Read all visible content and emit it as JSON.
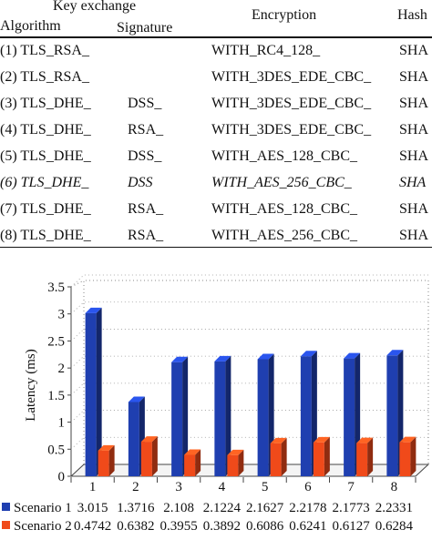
{
  "table": {
    "header": {
      "key_exchange": "Key exchange",
      "algorithm": "Algorithm",
      "signature": "Signature",
      "encryption": "Encryption",
      "hash": "Hash"
    },
    "rows": [
      {
        "alg": "(1) TLS_RSA_",
        "sig": "",
        "enc": "WITH_RC4_128_",
        "hash": "SHA",
        "italic": false
      },
      {
        "alg": "(2) TLS_RSA_",
        "sig": "",
        "enc": "WITH_3DES_EDE_CBC_",
        "hash": "SHA",
        "italic": false
      },
      {
        "alg": "(3) TLS_DHE_",
        "sig": "DSS_",
        "enc": "WITH_3DES_EDE_CBC_",
        "hash": "SHA",
        "italic": false
      },
      {
        "alg": "(4) TLS_DHE_",
        "sig": "RSA_",
        "enc": "WITH_3DES_EDE_CBC_",
        "hash": "SHA",
        "italic": false
      },
      {
        "alg": "(5) TLS_DHE_",
        "sig": "DSS_",
        "enc": "WITH_AES_128_CBC_",
        "hash": "SHA",
        "italic": false
      },
      {
        "alg": "(6) TLS_DHE_",
        "sig": "DSS",
        "enc": "WITH_AES_256_CBC_",
        "hash": "SHA",
        "italic": true
      },
      {
        "alg": "(7) TLS_DHE_",
        "sig": "RSA_",
        "enc": "WITH_AES_128_CBC_",
        "hash": "SHA",
        "italic": false
      },
      {
        "alg": "(8) TLS_DHE_",
        "sig": "RSA_",
        "enc": "WITH_AES_256_CBC_",
        "hash": "SHA",
        "italic": false
      }
    ]
  },
  "chart_data": {
    "type": "bar",
    "categories": [
      "1",
      "2",
      "3",
      "4",
      "5",
      "6",
      "7",
      "8"
    ],
    "series": [
      {
        "name": "Scenario 1",
        "color": "#1f3fb0",
        "values": [
          3.015,
          1.3716,
          2.108,
          2.1224,
          2.1627,
          2.2178,
          2.1773,
          2.2331
        ],
        "labels": [
          "3.015",
          "1.3716",
          "2.108",
          "2.1224",
          "2.1627",
          "2.2178",
          "2.1773",
          "2.2331"
        ]
      },
      {
        "name": "Scenario 2",
        "color": "#f04a1a",
        "values": [
          0.4742,
          0.6382,
          0.3955,
          0.3892,
          0.6086,
          0.6241,
          0.6127,
          0.6284
        ],
        "labels": [
          "0.4742",
          "0.6382",
          "0.3955",
          "0.3892",
          "0.6086",
          "0.6241",
          "0.6127",
          "0.6284"
        ]
      }
    ],
    "ylabel": "Latency (ms)",
    "ylim": [
      0,
      3.5
    ],
    "yticks": [
      "0",
      "0.5",
      "1",
      "1.5",
      "2",
      "2.5",
      "3",
      "3.5"
    ],
    "grid": true,
    "legend": "bottom data table",
    "style": "3d"
  }
}
